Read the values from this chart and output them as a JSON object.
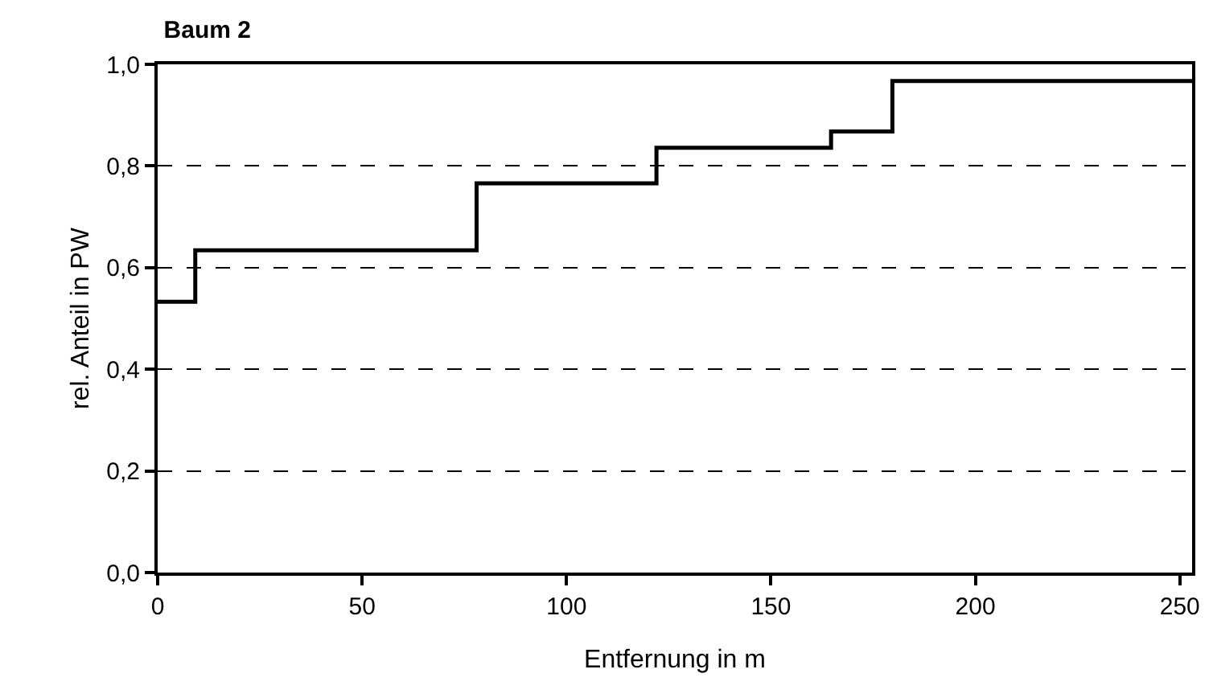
{
  "chart_data": {
    "type": "step",
    "title": "Baum 2",
    "xlabel": "Entfernung in m",
    "ylabel": "rel. Anteil in PW",
    "x": [
      0,
      9.2,
      78,
      122,
      164.7,
      179.7,
      253
    ],
    "series": [
      {
        "color": "#000000",
        "values": [
          0.533,
          0.634,
          0.766,
          0.836,
          0.868,
          0.967,
          0.967
        ]
      }
    ],
    "xlim": [
      0,
      253
    ],
    "xticks": [
      0,
      50,
      100,
      150,
      200,
      250
    ],
    "ylim": [
      0,
      1
    ],
    "yticks": [
      {
        "value": 0,
        "label": "0,0"
      },
      {
        "value": 0.2,
        "label": "0,2"
      },
      {
        "value": 0.4,
        "label": "0,4"
      },
      {
        "value": 0.6,
        "label": "0,6"
      },
      {
        "value": 0.8,
        "label": "0,8"
      },
      {
        "value": 1,
        "label": "1,0"
      }
    ],
    "grid": "y",
    "legend": false,
    "marker": "none",
    "line_style": "solid"
  }
}
